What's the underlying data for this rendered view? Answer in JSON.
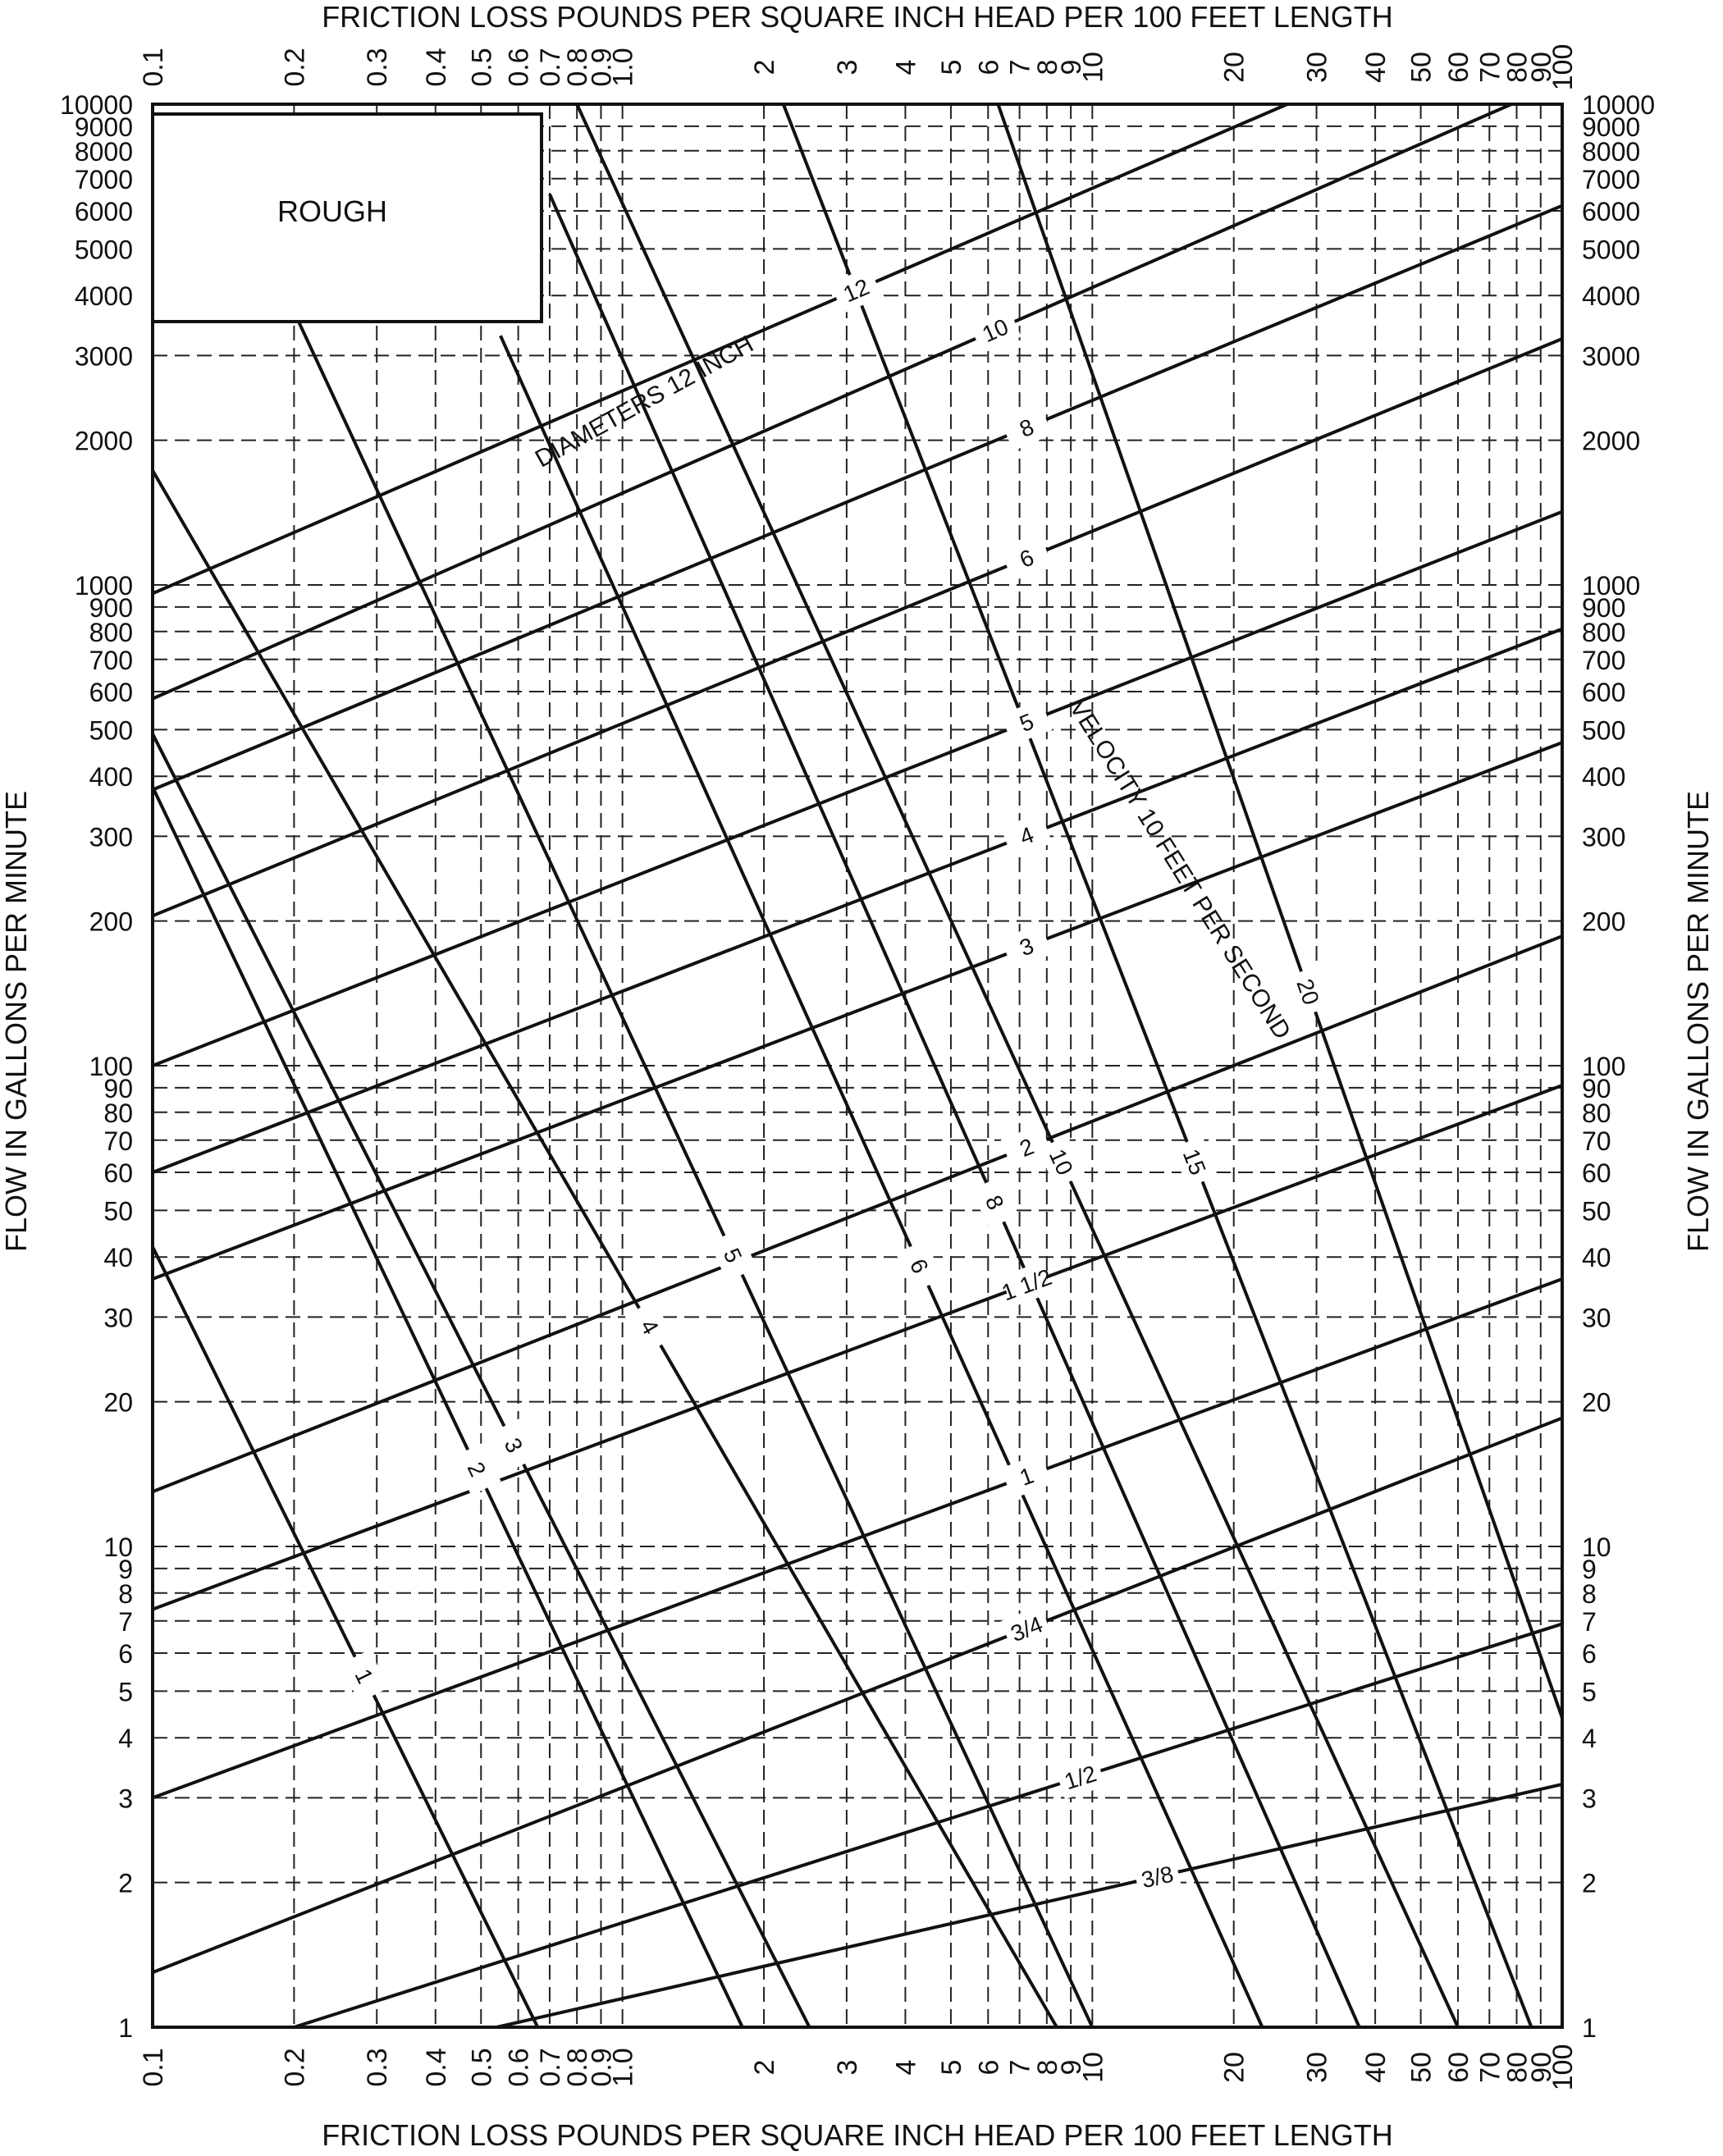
{
  "chart_data": {
    "type": "line",
    "title": "",
    "xlabel_top": "FRICTION LOSS POUNDS PER SQUARE INCH HEAD PER 100 FEET LENGTH",
    "xlabel_bottom": "FRICTION LOSS POUNDS PER SQUARE INCH HEAD PER 100 FEET LENGTH",
    "ylabel_left": "FLOW IN GALLONS PER MINUTE",
    "ylabel_right": "FLOW IN GALLONS PER MINUTE",
    "xscale": "log",
    "yscale": "log",
    "xlim": [
      0.1,
      100
    ],
    "ylim": [
      1,
      10000
    ],
    "grid": true,
    "box_label": "ROUGH",
    "x_ticks": [
      {
        "v": 0.1,
        "t": "0.1"
      },
      {
        "v": 0.2,
        "t": "0.2"
      },
      {
        "v": 0.3,
        "t": "0.3"
      },
      {
        "v": 0.4,
        "t": "0.4"
      },
      {
        "v": 0.5,
        "t": "0.5"
      },
      {
        "v": 0.6,
        "t": "0.6"
      },
      {
        "v": 0.7,
        "t": "0.7"
      },
      {
        "v": 0.8,
        "t": "0.8"
      },
      {
        "v": 0.9,
        "t": "0.9"
      },
      {
        "v": 1.0,
        "t": "1.0"
      },
      {
        "v": 2,
        "t": "2"
      },
      {
        "v": 3,
        "t": "3"
      },
      {
        "v": 4,
        "t": "4"
      },
      {
        "v": 5,
        "t": "5"
      },
      {
        "v": 6,
        "t": "6"
      },
      {
        "v": 7,
        "t": "7"
      },
      {
        "v": 8,
        "t": "8"
      },
      {
        "v": 9,
        "t": "9"
      },
      {
        "v": 10,
        "t": "10"
      },
      {
        "v": 20,
        "t": "20"
      },
      {
        "v": 30,
        "t": "30"
      },
      {
        "v": 40,
        "t": "40"
      },
      {
        "v": 50,
        "t": "50"
      },
      {
        "v": 60,
        "t": "60"
      },
      {
        "v": 70,
        "t": "70"
      },
      {
        "v": 80,
        "t": "80"
      },
      {
        "v": 90,
        "t": "90"
      },
      {
        "v": 100,
        "t": "100"
      }
    ],
    "y_ticks": [
      {
        "v": 1,
        "t": "1"
      },
      {
        "v": 2,
        "t": "2"
      },
      {
        "v": 3,
        "t": "3"
      },
      {
        "v": 4,
        "t": "4"
      },
      {
        "v": 5,
        "t": "5"
      },
      {
        "v": 6,
        "t": "6"
      },
      {
        "v": 7,
        "t": "7"
      },
      {
        "v": 8,
        "t": "8"
      },
      {
        "v": 9,
        "t": "9"
      },
      {
        "v": 10,
        "t": "10"
      },
      {
        "v": 20,
        "t": "20"
      },
      {
        "v": 30,
        "t": "30"
      },
      {
        "v": 40,
        "t": "40"
      },
      {
        "v": 50,
        "t": "50"
      },
      {
        "v": 60,
        "t": "60"
      },
      {
        "v": 70,
        "t": "70"
      },
      {
        "v": 80,
        "t": "80"
      },
      {
        "v": 90,
        "t": "90"
      },
      {
        "v": 100,
        "t": "100"
      },
      {
        "v": 200,
        "t": "200"
      },
      {
        "v": 300,
        "t": "300"
      },
      {
        "v": 400,
        "t": "400"
      },
      {
        "v": 500,
        "t": "500"
      },
      {
        "v": 600,
        "t": "600"
      },
      {
        "v": 700,
        "t": "700"
      },
      {
        "v": 800,
        "t": "800"
      },
      {
        "v": 900,
        "t": "900"
      },
      {
        "v": 1000,
        "t": "1000"
      },
      {
        "v": 2000,
        "t": "2000"
      },
      {
        "v": 3000,
        "t": "3000"
      },
      {
        "v": 4000,
        "t": "4000"
      },
      {
        "v": 5000,
        "t": "5000"
      },
      {
        "v": 6000,
        "t": "6000"
      },
      {
        "v": 7000,
        "t": "7000"
      },
      {
        "v": 8000,
        "t": "8000"
      },
      {
        "v": 9000,
        "t": "9000"
      },
      {
        "v": 10000,
        "t": "10000"
      }
    ],
    "diameter_lines": [
      {
        "label": "3/8",
        "points": [
          [
            0.54,
            1
          ],
          [
            100,
            3.2
          ]
        ]
      },
      {
        "label": "1/2",
        "points": [
          [
            0.2,
            1
          ],
          [
            100,
            6.9
          ]
        ]
      },
      {
        "label": "3/4",
        "points": [
          [
            0.1,
            1.3
          ],
          [
            100,
            18.5
          ]
        ]
      },
      {
        "label": "1",
        "points": [
          [
            0.1,
            3.0
          ],
          [
            100,
            36
          ]
        ]
      },
      {
        "label": "1 1/2",
        "points": [
          [
            0.1,
            7.4
          ],
          [
            100,
            91
          ]
        ]
      },
      {
        "label": "2",
        "points": [
          [
            0.1,
            13.0
          ],
          [
            100,
            186
          ]
        ]
      },
      {
        "label": "3",
        "points": [
          [
            0.1,
            36
          ],
          [
            100,
            470
          ]
        ]
      },
      {
        "label": "4",
        "points": [
          [
            0.1,
            60
          ],
          [
            100,
            810
          ]
        ]
      },
      {
        "label": "5",
        "points": [
          [
            0.1,
            100
          ],
          [
            100,
            1420
          ]
        ]
      },
      {
        "label": "6",
        "points": [
          [
            0.1,
            205
          ],
          [
            100,
            3250
          ]
        ]
      },
      {
        "label": "8",
        "points": [
          [
            0.1,
            375
          ],
          [
            100,
            6150
          ]
        ]
      },
      {
        "label": "10",
        "points": [
          [
            0.1,
            580
          ],
          [
            78,
            10000
          ]
        ]
      },
      {
        "label": "12",
        "points": [
          [
            0.1,
            960
          ],
          [
            26,
            10000
          ]
        ]
      }
    ],
    "velocity_lines": [
      {
        "label": "1",
        "points": [
          [
            0.1,
            42
          ],
          [
            0.66,
            1
          ]
        ]
      },
      {
        "label": "2",
        "points": [
          [
            0.1,
            380
          ],
          [
            1.8,
            1
          ]
        ]
      },
      {
        "label": "3",
        "points": [
          [
            0.1,
            490
          ],
          [
            2.5,
            1
          ]
        ]
      },
      {
        "label": "4",
        "points": [
          [
            0.1,
            1730
          ],
          [
            8.4,
            1
          ]
        ]
      },
      {
        "label": "5",
        "points": [
          [
            0.2,
            3700
          ],
          [
            10,
            1
          ]
        ]
      },
      {
        "label": "6",
        "points": [
          [
            0.55,
            3300
          ],
          [
            23,
            1
          ]
        ]
      },
      {
        "label": "8",
        "points": [
          [
            0.7,
            6500
          ],
          [
            37,
            1
          ]
        ]
      },
      {
        "label": "10",
        "points": [
          [
            0.8,
            10000
          ],
          [
            60,
            1
          ]
        ]
      },
      {
        "label": "15",
        "points": [
          [
            2.2,
            10000
          ],
          [
            86,
            1
          ]
        ]
      },
      {
        "label": "20",
        "points": [
          [
            6.3,
            10000
          ],
          [
            100,
            4.4
          ]
        ]
      }
    ],
    "diameter_title": "DIAMETERS 12 INCH",
    "velocity_title": "VELOCITY 10 FEET PER SECOND"
  }
}
